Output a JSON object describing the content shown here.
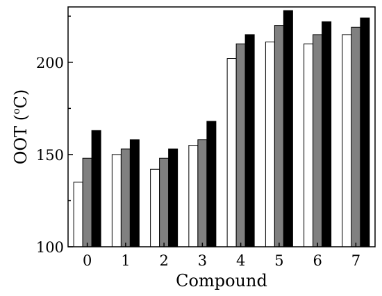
{
  "chart_data": {
    "type": "bar",
    "title": "",
    "xlabel": "Compound",
    "ylabel": "OOT (",
    "ylabel_sup": "o",
    "ylabel_unit": "C)",
    "categories": [
      "0",
      "1",
      "2",
      "3",
      "4",
      "5",
      "6",
      "7"
    ],
    "series": [
      {
        "values": [
          135,
          150,
          142,
          155,
          202,
          211,
          210,
          215
        ],
        "color": "#ffffff"
      },
      {
        "values": [
          148,
          153,
          148,
          158,
          210,
          220,
          215,
          219
        ],
        "color": "#808080"
      },
      {
        "values": [
          163,
          158,
          153,
          168,
          215,
          228,
          222,
          224
        ],
        "color": "#000000"
      }
    ],
    "ylim": [
      100,
      230
    ],
    "yticks": [
      "100",
      "150",
      "200"
    ],
    "ytick_values": [
      100,
      150,
      200
    ],
    "grid": false,
    "legend": "none"
  }
}
